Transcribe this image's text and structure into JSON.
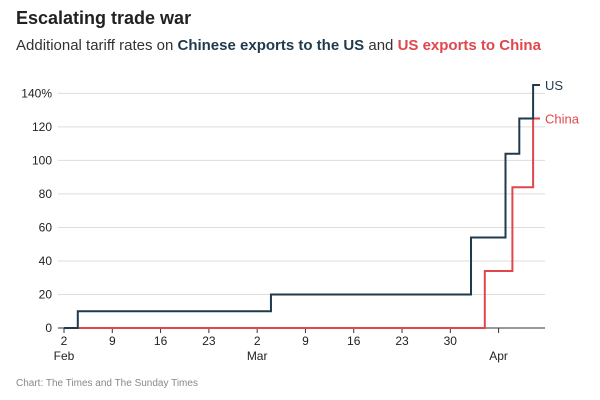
{
  "header": {
    "title": "Escalating trade war",
    "subtitle_prefix": "Additional tariff rates on ",
    "subtitle_series1": "Chinese exports to the US",
    "subtitle_mid": " and ",
    "subtitle_series2": "US exports to China"
  },
  "footer": {
    "credit": "Chart: The Times and The Sunday Times"
  },
  "colors": {
    "us": "#1f3a4d",
    "china": "#e0474c",
    "grid": "#dddddd",
    "axis": "#333333"
  },
  "chart_data": {
    "type": "line",
    "step": "after",
    "title": "Escalating trade war",
    "subtitle": "Additional tariff rates on Chinese exports to the US and US exports to China",
    "ylim": [
      0,
      145
    ],
    "y_ticks": [
      0,
      20,
      40,
      60,
      80,
      100,
      120,
      140
    ],
    "y_tick_labels": [
      "0",
      "20",
      "40",
      "60",
      "80",
      "100",
      "120",
      "140%"
    ],
    "xlim": [
      "2025-02-02",
      "2025-04-12"
    ],
    "x_ticks": [
      "2025-02-02",
      "2025-02-09",
      "2025-02-16",
      "2025-02-23",
      "2025-03-02",
      "2025-03-09",
      "2025-03-16",
      "2025-03-23",
      "2025-03-30",
      "2025-04-06"
    ],
    "x_tick_labels": [
      "2",
      "9",
      "16",
      "23",
      "2",
      "9",
      "16",
      "23",
      "30",
      ""
    ],
    "x_month_labels": [
      {
        "date": "2025-02-02",
        "label": "Feb"
      },
      {
        "date": "2025-03-02",
        "label": "Mar"
      },
      {
        "date": "2025-04-06",
        "label": "Apr"
      }
    ],
    "grid": true,
    "series": [
      {
        "name": "US",
        "color": "#1f3a4d",
        "x": [
          "2025-02-02",
          "2025-02-04",
          "2025-03-04",
          "2025-04-02",
          "2025-04-07",
          "2025-04-09",
          "2025-04-11",
          "2025-04-12"
        ],
        "y": [
          0,
          10,
          20,
          54,
          104,
          125,
          145,
          145
        ]
      },
      {
        "name": "China",
        "color": "#e0474c",
        "x": [
          "2025-02-02",
          "2025-04-04",
          "2025-04-08",
          "2025-04-11",
          "2025-04-12"
        ],
        "y": [
          0,
          34,
          84,
          125,
          125
        ]
      }
    ]
  }
}
